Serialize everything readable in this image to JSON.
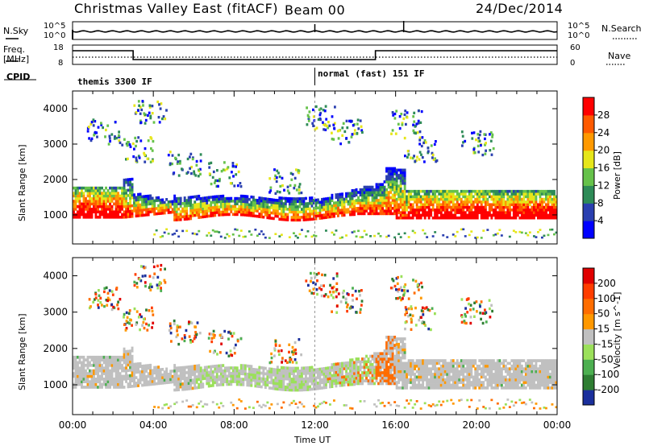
{
  "header": {
    "title": "Christmas Valley East (fitACF)",
    "beam": "Beam 00",
    "date": "24/Dec/2014"
  },
  "params": {
    "nsky_label": "N.Sky",
    "nsky_ticks": [
      "10^5",
      "10^0"
    ],
    "nsearch_label": "N.Search",
    "nsearch_ticks": [
      "10^5",
      "10^0"
    ],
    "freq_label": "Freq.",
    "freq_unit": "[MHz]",
    "freq_ticks": [
      "18",
      "8"
    ],
    "nave_label": "Nave",
    "nave_ticks": [
      "60",
      "0"
    ],
    "cpid_label": "CPID",
    "cpid_segments": [
      "themis 3300 IF",
      "normal (fast) 151 IF"
    ]
  },
  "chart_data": [
    {
      "type": "heatmap",
      "name": "power-panel",
      "ylabel": "Slant Range [km]",
      "yticks": [
        1000,
        2000,
        3000,
        4000
      ],
      "ylim": [
        180,
        4500
      ],
      "xlim_hours": [
        0,
        24
      ],
      "colorbar": {
        "label": "Power [dB]",
        "ticks": [
          "4",
          "8",
          "12",
          "16",
          "20",
          "24",
          "28"
        ],
        "colors": [
          "#0000ff",
          "#2a3fb0",
          "#2e8b57",
          "#66c24a",
          "#e6e61a",
          "#ff9900",
          "#ff5a00",
          "#ff0000"
        ]
      }
    },
    {
      "type": "heatmap",
      "name": "velocity-panel",
      "ylabel": "Slant Range [km]",
      "yticks": [
        1000,
        2000,
        3000,
        4000
      ],
      "ylim": [
        180,
        4500
      ],
      "xlim_hours": [
        0,
        24
      ],
      "colorbar": {
        "label": "Velocity [m s^-1]",
        "ticks": [
          "200",
          "100",
          "50",
          "15",
          "-15",
          "-50",
          "-100",
          "-200"
        ],
        "colors": [
          "#1a2f9c",
          "#2e7d32",
          "#4caf50",
          "#9be05a",
          "#c0c0c0",
          "#ff9800",
          "#ff6d00",
          "#ff3d00",
          "#e00000"
        ]
      },
      "xticks": [
        "00:00",
        "04:00",
        "08:00",
        "12:00",
        "16:00",
        "20:00",
        "00:00"
      ],
      "xlabel": "Time UT"
    }
  ]
}
